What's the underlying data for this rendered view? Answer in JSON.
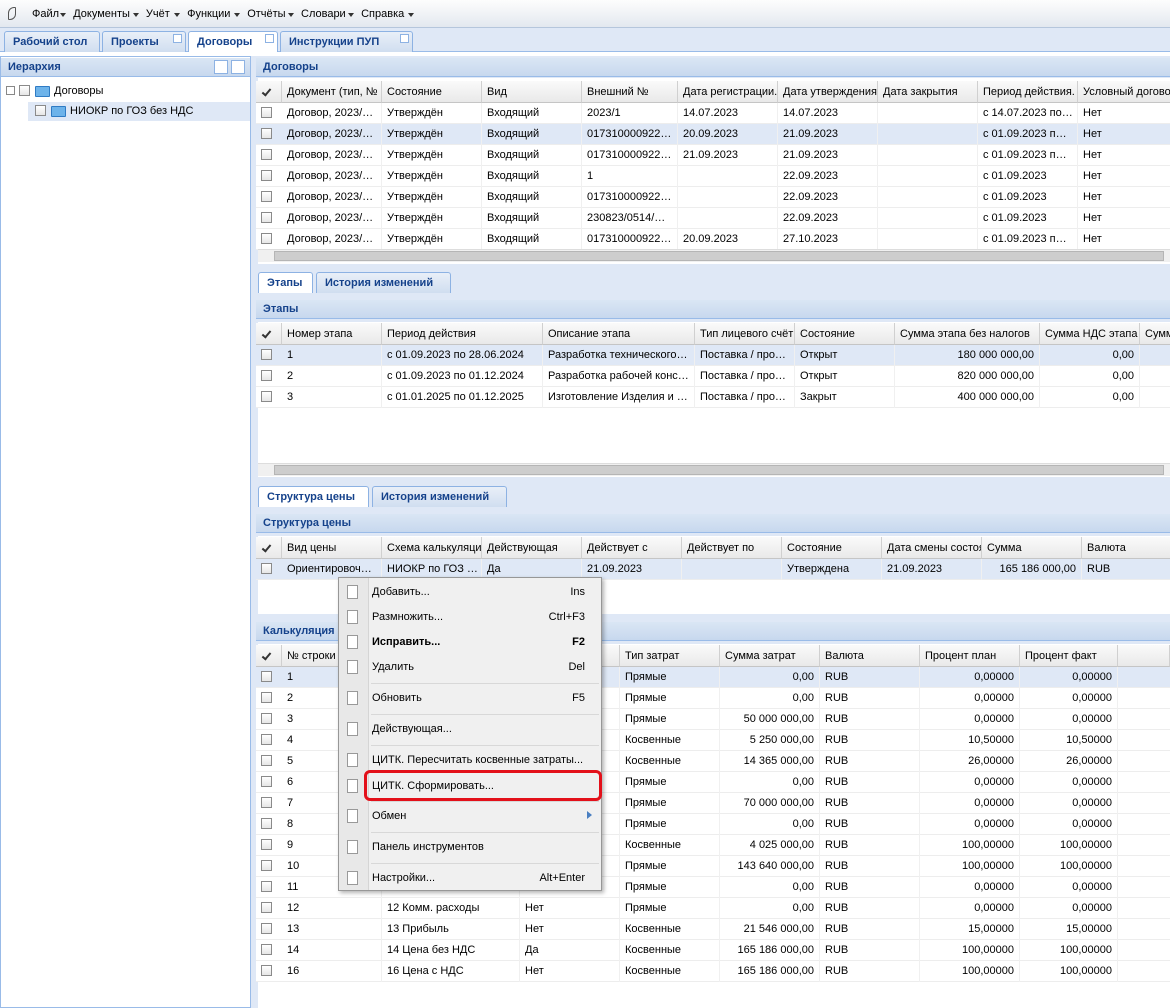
{
  "menu": [
    "Файл",
    "Документы",
    "Учёт",
    "Функции",
    "Отчёты",
    "Словари",
    "Справка"
  ],
  "tabs": [
    "Рабочий стол",
    "Проекты",
    "Договоры",
    "Инструкции ПУП"
  ],
  "hierarchy": {
    "title": "Иерархия",
    "nodes": [
      "Договоры",
      "НИОКР по ГОЗ без НДС"
    ]
  },
  "contracts": {
    "title": "Договоры",
    "columns": [
      "Документ (тип, №",
      "Состояние",
      "Вид",
      "Внешний №",
      "Дата регистрации.",
      "Дата утверждения",
      "Дата закрытия",
      "Период действия.",
      "Условный догово"
    ],
    "rows": [
      [
        "Договор, 2023/…",
        "Утверждён",
        "Входящий",
        "2023/1",
        "14.07.2023",
        "14.07.2023",
        null,
        "с 14.07.2023 по…",
        "Нет"
      ],
      [
        "Договор, 2023/…",
        "Утверждён",
        "Входящий",
        "017310000922…",
        "20.09.2023",
        "21.09.2023",
        null,
        "с 01.09.2023 п…",
        "Нет"
      ],
      [
        "Договор, 2023/…",
        "Утверждён",
        "Входящий",
        "017310000922…",
        "21.09.2023",
        "21.09.2023",
        null,
        "с 01.09.2023 п…",
        "Нет"
      ],
      [
        "Договор, 2023/…",
        "Утверждён",
        "Входящий",
        "1",
        null,
        "22.09.2023",
        null,
        "с 01.09.2023",
        "Нет"
      ],
      [
        "Договор, 2023/…",
        "Утверждён",
        "Входящий",
        "017310000922…",
        null,
        "22.09.2023",
        null,
        "с 01.09.2023",
        "Нет"
      ],
      [
        "Договор, 2023/…",
        "Утверждён",
        "Входящий",
        "230823/0514/…",
        null,
        "22.09.2023",
        null,
        "с 01.09.2023",
        "Нет"
      ],
      [
        "Договор, 2023/…",
        "Утверждён",
        "Входящий",
        "017310000922…",
        "20.09.2023",
        "27.10.2023",
        null,
        "с 01.09.2023 п…",
        "Нет"
      ]
    ]
  },
  "stage_tabs": [
    "Этапы",
    "История изменений"
  ],
  "stages": {
    "title": "Этапы",
    "columns": [
      "Номер этапа",
      "Период действия",
      "Описание этапа",
      "Тип лицевого счёт",
      "Состояние",
      "Сумма этапа без налогов",
      "Сумма НДС этапа",
      "Сумм"
    ],
    "rows": [
      [
        "1",
        "с 01.09.2023 по 28.06.2024",
        "Разработка технического…",
        "Поставка / про…",
        "Открыт",
        "180 000 000,00",
        "0,00",
        null
      ],
      [
        "2",
        "с 01.09.2023 по 01.12.2024",
        "Разработка рабочей конс…",
        "Поставка / про…",
        "Открыт",
        "820 000 000,00",
        "0,00",
        null
      ],
      [
        "3",
        "с 01.01.2025 по 01.12.2025",
        "Изготовление Изделия и …",
        "Поставка / про…",
        "Закрыт",
        "400 000 000,00",
        "0,00",
        null
      ]
    ]
  },
  "price_tabs": [
    "Структура цены",
    "История изменений"
  ],
  "price": {
    "title": "Структура цены",
    "columns": [
      "Вид цены",
      "Схема калькуляци",
      "Действующая",
      "Действует с",
      "Действует по",
      "Состояние",
      "Дата смены состоя",
      "Сумма",
      "Валюта"
    ],
    "rows": [
      [
        "Ориентировоч…",
        "НИОКР по ГОЗ …",
        "Да",
        "21.09.2023",
        null,
        "Утверждена",
        "21.09.2023",
        "165 186 000,00",
        "RUB"
      ]
    ]
  },
  "calc": {
    "title": "Калькуляция",
    "columns": [
      "№ строки",
      null,
      null,
      "Тип затрат",
      "Сумма затрат",
      "Валюта",
      "Процент план",
      "Процент факт"
    ],
    "rows": [
      [
        "1",
        null,
        null,
        "Прямые",
        "0,00",
        "RUB",
        "0,00000",
        "0,00000"
      ],
      [
        "2",
        null,
        null,
        "Прямые",
        "0,00",
        "RUB",
        "0,00000",
        "0,00000"
      ],
      [
        "3",
        null,
        null,
        "Прямые",
        "50 000 000,00",
        "RUB",
        "0,00000",
        "0,00000"
      ],
      [
        "4",
        null,
        null,
        "Косвенные",
        "5 250 000,00",
        "RUB",
        "10,50000",
        "10,50000"
      ],
      [
        "5",
        null,
        null,
        "Косвенные",
        "14 365 000,00",
        "RUB",
        "26,00000",
        "26,00000"
      ],
      [
        "6",
        null,
        null,
        "Прямые",
        "0,00",
        "RUB",
        "0,00000",
        "0,00000"
      ],
      [
        "7",
        null,
        null,
        "Прямые",
        "70 000 000,00",
        "RUB",
        "0,00000",
        "0,00000"
      ],
      [
        "8",
        null,
        null,
        "Прямые",
        "0,00",
        "RUB",
        "0,00000",
        "0,00000"
      ],
      [
        "9",
        null,
        null,
        "Косвенные",
        "4 025 000,00",
        "RUB",
        "100,00000",
        "100,00000"
      ],
      [
        "10",
        null,
        null,
        "Прямые",
        "143 640 000,00",
        "RUB",
        "100,00000",
        "100,00000"
      ],
      [
        "11",
        null,
        null,
        "Прямые",
        "0,00",
        "RUB",
        "0,00000",
        "0,00000"
      ],
      [
        "12",
        "12 Комм. расходы",
        "Нет",
        "Прямые",
        "0,00",
        "RUB",
        "0,00000",
        "0,00000"
      ],
      [
        "13",
        "13 Прибыль",
        "Нет",
        "Косвенные",
        "21 546 000,00",
        "RUB",
        "15,00000",
        "15,00000"
      ],
      [
        "14",
        "14 Цена без НДС",
        "Да",
        "Косвенные",
        "165 186 000,00",
        "RUB",
        "100,00000",
        "100,00000"
      ],
      [
        "16",
        "16 Цена с НДС",
        "Нет",
        "Косвенные",
        "165 186 000,00",
        "RUB",
        "100,00000",
        "100,00000"
      ]
    ]
  },
  "context_menu": [
    {
      "label": "Добавить...",
      "shortcut": "Ins"
    },
    {
      "label": "Размножить...",
      "shortcut": "Ctrl+F3"
    },
    {
      "label": "Исправить...",
      "shortcut": "F2"
    },
    {
      "label": "Удалить",
      "shortcut": "Del"
    },
    {
      "label": "Обновить",
      "shortcut": "F5"
    },
    {
      "label": "Действующая..."
    },
    {
      "label": "ЦИТК. Пересчитать косвенные затраты..."
    },
    {
      "label": "ЦИТК. Сформировать..."
    },
    {
      "label": "Обмен"
    },
    {
      "label": "Панель инструментов"
    },
    {
      "label": "Настройки...",
      "shortcut": "Alt+Enter"
    }
  ]
}
